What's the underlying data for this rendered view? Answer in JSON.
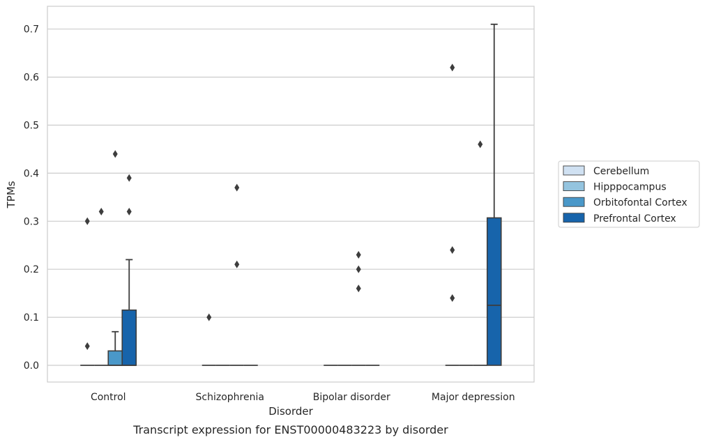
{
  "chart_data": {
    "type": "box",
    "xlabel": "Disorder",
    "ylabel": "TPMs",
    "caption": "Transcript expression for ENST00000483223 by disorder",
    "categories": [
      "Control",
      "Schizophrenia",
      "Bipolar disorder",
      "Major depression"
    ],
    "ylim": [
      -0.035,
      0.75
    ],
    "yticks": [
      "0.0",
      "0.1",
      "0.2",
      "0.3",
      "0.4",
      "0.5",
      "0.6",
      "0.7"
    ],
    "grid": true,
    "legend_position": "right",
    "series": [
      {
        "name": "Cerebellum",
        "color": "#d0e1f2",
        "boxes": [
          {
            "min": 0,
            "q1": 0,
            "median": 0,
            "q3": 0,
            "max": 0,
            "outliers": [
              0.04,
              0.3
            ]
          },
          {
            "min": 0,
            "q1": 0,
            "median": 0,
            "q3": 0,
            "max": 0,
            "outliers": [
              0.1
            ]
          },
          {
            "min": 0,
            "q1": 0,
            "median": 0,
            "q3": 0,
            "max": 0,
            "outliers": []
          },
          {
            "min": 0,
            "q1": 0,
            "median": 0,
            "q3": 0,
            "max": 0,
            "outliers": [
              0.14,
              0.24,
              0.62
            ]
          }
        ]
      },
      {
        "name": "Hipppocampus",
        "color": "#94c4df",
        "boxes": [
          {
            "min": 0,
            "q1": 0,
            "median": 0,
            "q3": 0,
            "max": 0,
            "outliers": [
              0.32
            ]
          },
          {
            "min": 0,
            "q1": 0,
            "median": 0,
            "q3": 0,
            "max": 0,
            "outliers": []
          },
          {
            "min": 0,
            "q1": 0,
            "median": 0,
            "q3": 0,
            "max": 0,
            "outliers": []
          },
          {
            "min": 0,
            "q1": 0,
            "median": 0,
            "q3": 0,
            "max": 0,
            "outliers": []
          }
        ]
      },
      {
        "name": "Orbitofontal Cortex",
        "color": "#4a98c9",
        "boxes": [
          {
            "min": 0,
            "q1": 0,
            "median": 0,
            "q3": 0.03,
            "max": 0.07,
            "outliers": [
              0.44
            ]
          },
          {
            "min": 0,
            "q1": 0,
            "median": 0,
            "q3": 0,
            "max": 0,
            "outliers": [
              0.21,
              0.37
            ]
          },
          {
            "min": 0,
            "q1": 0,
            "median": 0,
            "q3": 0,
            "max": 0,
            "outliers": [
              0.16,
              0.2,
              0.23
            ]
          },
          {
            "min": 0,
            "q1": 0,
            "median": 0,
            "q3": 0,
            "max": 0,
            "outliers": [
              0.46
            ]
          }
        ]
      },
      {
        "name": "Prefrontal Cortex",
        "color": "#1764ab",
        "boxes": [
          {
            "min": 0,
            "q1": 0,
            "median": 0,
            "q3": 0.115,
            "max": 0.22,
            "outliers": [
              0.32,
              0.39
            ]
          },
          {
            "min": 0,
            "q1": 0,
            "median": 0,
            "q3": 0,
            "max": 0,
            "outliers": []
          },
          {
            "min": 0,
            "q1": 0,
            "median": 0,
            "q3": 0,
            "max": 0,
            "outliers": []
          },
          {
            "min": 0,
            "q1": 0,
            "median": 0.125,
            "q3": 0.307,
            "max": 0.71,
            "outliers": []
          }
        ]
      }
    ]
  }
}
